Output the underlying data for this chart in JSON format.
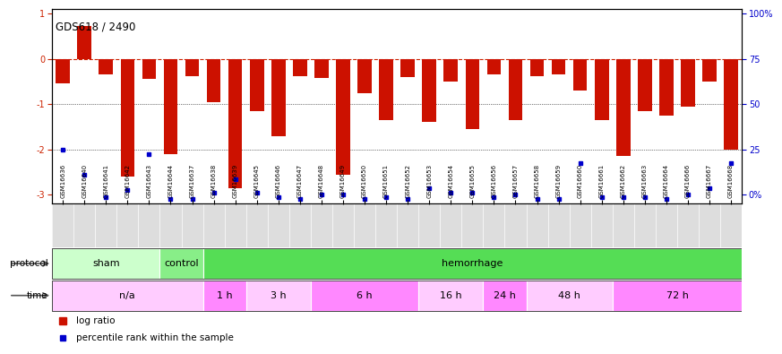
{
  "title": "GDS618 / 2490",
  "samples": [
    "GSM16636",
    "GSM16640",
    "GSM16641",
    "GSM16642",
    "GSM16643",
    "GSM16644",
    "GSM16637",
    "GSM16638",
    "GSM16639",
    "GSM16645",
    "GSM16646",
    "GSM16647",
    "GSM16648",
    "GSM16649",
    "GSM16650",
    "GSM16651",
    "GSM16652",
    "GSM16653",
    "GSM16654",
    "GSM16655",
    "GSM16656",
    "GSM16657",
    "GSM16658",
    "GSM16659",
    "GSM16660",
    "GSM16661",
    "GSM16662",
    "GSM16663",
    "GSM16664",
    "GSM16666",
    "GSM16667",
    "GSM16668"
  ],
  "log_ratio": [
    -0.55,
    0.72,
    -0.35,
    -2.6,
    -0.45,
    -2.1,
    -0.38,
    -0.95,
    -2.85,
    -1.15,
    -1.7,
    -0.38,
    -0.42,
    -2.55,
    -0.75,
    -1.35,
    -0.4,
    -1.4,
    -0.5,
    -1.55,
    -0.35,
    -1.35,
    -0.38,
    -0.35,
    -0.7,
    -1.35,
    -2.15,
    -1.15,
    -1.25,
    -1.05,
    -0.5,
    -2.0
  ],
  "pct_rank_values": [
    -2.0,
    -2.55,
    -3.05,
    -2.9,
    -2.1,
    -3.1,
    -3.1,
    -2.95,
    -2.65,
    -2.95,
    -3.05,
    -3.1,
    -3.0,
    -3.0,
    -3.1,
    -3.05,
    -3.1,
    -2.85,
    -2.95,
    -2.95,
    -3.05,
    -3.0,
    -3.1,
    -3.1,
    -2.3,
    -3.05,
    -3.05,
    -3.05,
    -3.1,
    -3.0,
    -2.85,
    -2.3
  ],
  "protocol_groups": [
    {
      "label": "sham",
      "start": 0,
      "end": 5,
      "color": "#ccffcc"
    },
    {
      "label": "control",
      "start": 5,
      "end": 7,
      "color": "#88ee88"
    },
    {
      "label": "hemorrhage",
      "start": 7,
      "end": 32,
      "color": "#55dd55"
    }
  ],
  "time_groups": [
    {
      "label": "n/a",
      "start": 0,
      "end": 7,
      "color": "#ffccff"
    },
    {
      "label": "1 h",
      "start": 7,
      "end": 9,
      "color": "#ff88ff"
    },
    {
      "label": "3 h",
      "start": 9,
      "end": 12,
      "color": "#ffccff"
    },
    {
      "label": "6 h",
      "start": 12,
      "end": 17,
      "color": "#ff88ff"
    },
    {
      "label": "16 h",
      "start": 17,
      "end": 20,
      "color": "#ffccff"
    },
    {
      "label": "24 h",
      "start": 20,
      "end": 22,
      "color": "#ff88ff"
    },
    {
      "label": "48 h",
      "start": 22,
      "end": 26,
      "color": "#ffccff"
    },
    {
      "label": "72 h",
      "start": 26,
      "end": 32,
      "color": "#ff88ff"
    }
  ],
  "ylim": [
    -3.2,
    1.1
  ],
  "bar_color": "#cc1100",
  "pct_color": "#0000cc",
  "background_color": "#ffffff",
  "zero_line_color": "#cc2200",
  "left_axis_ticks": [
    -3,
    -2,
    -1,
    0,
    1
  ],
  "right_axis_pcts": [
    0,
    25,
    50,
    75,
    100
  ],
  "legend_log": "log ratio",
  "legend_pct": "percentile rank within the sample"
}
